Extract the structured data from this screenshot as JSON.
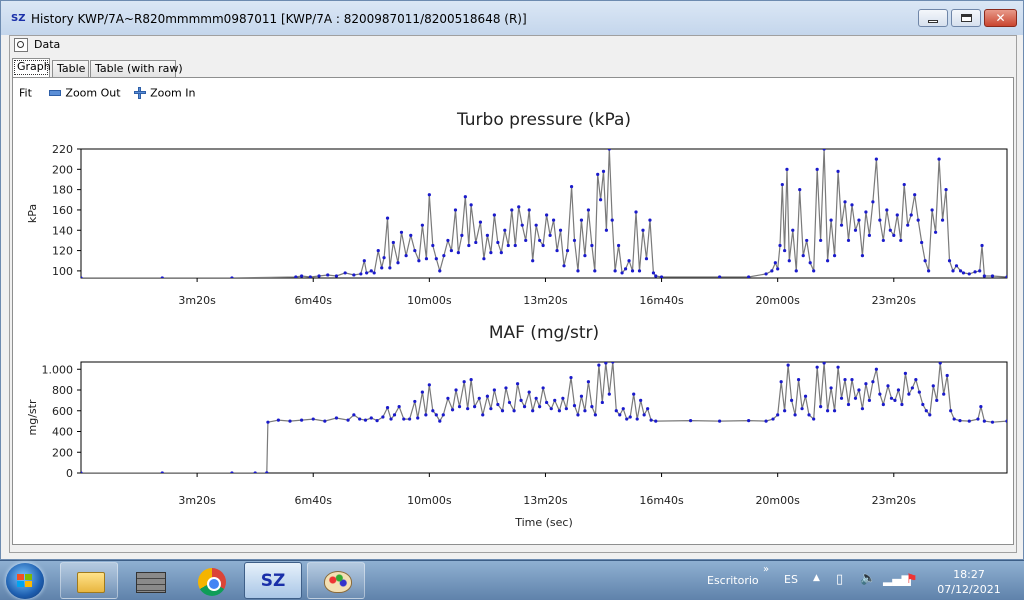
{
  "window": {
    "icon_text": "SZ",
    "title": "History KWP/7A~R820mmmmm0987011 [KWP/7A : 8200987011/8200518648 (R)]"
  },
  "toolbar": {
    "data_label": "Data"
  },
  "tabs": [
    {
      "label": "Graph",
      "active": true
    },
    {
      "label": "Table",
      "active": false
    },
    {
      "label": "Table (with raw)",
      "active": false
    }
  ],
  "zoom": {
    "fit_label": "Fit",
    "zoom_out_label": "Zoom Out",
    "zoom_in_label": "Zoom In"
  },
  "chart_data": [
    {
      "type": "line",
      "title": "Turbo pressure (kPa)",
      "ylabel": "kPa",
      "xlabel": "",
      "xlim": [
        0,
        1595
      ],
      "ylim": [
        93,
        220
      ],
      "yticks": [
        100,
        120,
        140,
        160,
        180,
        200,
        220
      ],
      "ytick_labels": [
        "100",
        "120",
        "140",
        "160",
        "180",
        "200",
        "220"
      ],
      "xticks": [
        200,
        400,
        600,
        800,
        1000,
        1200,
        1400
      ],
      "xtick_labels": [
        "3m20s",
        "6m40s",
        "10m00s",
        "13m20s",
        "16m40s",
        "20m00s",
        "23m20s"
      ],
      "series_color": "#1a1acb",
      "line_color": "#7a7a7a",
      "points": [
        [
          0,
          93
        ],
        [
          140,
          93
        ],
        [
          260,
          93
        ],
        [
          370,
          94
        ],
        [
          380,
          95
        ],
        [
          395,
          94
        ],
        [
          410,
          95
        ],
        [
          425,
          96
        ],
        [
          440,
          95
        ],
        [
          455,
          98
        ],
        [
          470,
          96
        ],
        [
          482,
          97
        ],
        [
          488,
          110
        ],
        [
          492,
          98
        ],
        [
          500,
          100
        ],
        [
          505,
          98
        ],
        [
          512,
          120
        ],
        [
          518,
          103
        ],
        [
          522,
          113
        ],
        [
          528,
          152
        ],
        [
          532,
          103
        ],
        [
          538,
          128
        ],
        [
          546,
          108
        ],
        [
          552,
          138
        ],
        [
          560,
          115
        ],
        [
          568,
          135
        ],
        [
          575,
          120
        ],
        [
          582,
          110
        ],
        [
          588,
          145
        ],
        [
          595,
          112
        ],
        [
          600,
          175
        ],
        [
          606,
          125
        ],
        [
          612,
          112
        ],
        [
          618,
          100
        ],
        [
          625,
          115
        ],
        [
          632,
          130
        ],
        [
          638,
          120
        ],
        [
          645,
          160
        ],
        [
          650,
          118
        ],
        [
          656,
          135
        ],
        [
          662,
          173
        ],
        [
          668,
          125
        ],
        [
          672,
          165
        ],
        [
          680,
          128
        ],
        [
          688,
          148
        ],
        [
          694,
          112
        ],
        [
          700,
          135
        ],
        [
          706,
          118
        ],
        [
          712,
          155
        ],
        [
          718,
          128
        ],
        [
          724,
          118
        ],
        [
          730,
          140
        ],
        [
          736,
          125
        ],
        [
          742,
          160
        ],
        [
          748,
          125
        ],
        [
          754,
          163
        ],
        [
          760,
          145
        ],
        [
          766,
          130
        ],
        [
          772,
          160
        ],
        [
          778,
          110
        ],
        [
          784,
          145
        ],
        [
          790,
          130
        ],
        [
          796,
          125
        ],
        [
          802,
          155
        ],
        [
          808,
          135
        ],
        [
          814,
          150
        ],
        [
          820,
          120
        ],
        [
          826,
          140
        ],
        [
          832,
          105
        ],
        [
          838,
          120
        ],
        [
          845,
          183
        ],
        [
          850,
          130
        ],
        [
          856,
          100
        ],
        [
          862,
          150
        ],
        [
          868,
          115
        ],
        [
          874,
          160
        ],
        [
          880,
          125
        ],
        [
          885,
          100
        ],
        [
          890,
          195
        ],
        [
          895,
          170
        ],
        [
          900,
          198
        ],
        [
          905,
          140
        ],
        [
          910,
          220
        ],
        [
          915,
          150
        ],
        [
          920,
          100
        ],
        [
          926,
          125
        ],
        [
          932,
          98
        ],
        [
          938,
          102
        ],
        [
          944,
          110
        ],
        [
          950,
          100
        ],
        [
          956,
          158
        ],
        [
          962,
          100
        ],
        [
          968,
          140
        ],
        [
          974,
          112
        ],
        [
          980,
          150
        ],
        [
          986,
          98
        ],
        [
          990,
          95
        ],
        [
          1000,
          94
        ],
        [
          1100,
          94
        ],
        [
          1150,
          94
        ],
        [
          1180,
          97
        ],
        [
          1190,
          100
        ],
        [
          1196,
          108
        ],
        [
          1200,
          102
        ],
        [
          1204,
          125
        ],
        [
          1208,
          185
        ],
        [
          1212,
          120
        ],
        [
          1216,
          200
        ],
        [
          1220,
          110
        ],
        [
          1226,
          140
        ],
        [
          1232,
          100
        ],
        [
          1238,
          180
        ],
        [
          1244,
          115
        ],
        [
          1250,
          130
        ],
        [
          1256,
          108
        ],
        [
          1262,
          100
        ],
        [
          1268,
          200
        ],
        [
          1274,
          130
        ],
        [
          1280,
          220
        ],
        [
          1286,
          110
        ],
        [
          1292,
          150
        ],
        [
          1298,
          115
        ],
        [
          1304,
          198
        ],
        [
          1310,
          145
        ],
        [
          1316,
          168
        ],
        [
          1322,
          130
        ],
        [
          1328,
          165
        ],
        [
          1334,
          140
        ],
        [
          1340,
          150
        ],
        [
          1346,
          115
        ],
        [
          1352,
          158
        ],
        [
          1358,
          135
        ],
        [
          1364,
          168
        ],
        [
          1370,
          210
        ],
        [
          1376,
          150
        ],
        [
          1382,
          130
        ],
        [
          1388,
          160
        ],
        [
          1394,
          140
        ],
        [
          1400,
          135
        ],
        [
          1406,
          155
        ],
        [
          1412,
          130
        ],
        [
          1418,
          185
        ],
        [
          1424,
          145
        ],
        [
          1430,
          155
        ],
        [
          1436,
          175
        ],
        [
          1442,
          150
        ],
        [
          1448,
          128
        ],
        [
          1454,
          110
        ],
        [
          1460,
          100
        ],
        [
          1466,
          160
        ],
        [
          1472,
          138
        ],
        [
          1478,
          210
        ],
        [
          1484,
          150
        ],
        [
          1490,
          180
        ],
        [
          1496,
          110
        ],
        [
          1502,
          100
        ],
        [
          1508,
          105
        ],
        [
          1515,
          100
        ],
        [
          1520,
          98
        ],
        [
          1530,
          97
        ],
        [
          1540,
          99
        ],
        [
          1548,
          100
        ],
        [
          1552,
          125
        ],
        [
          1556,
          95
        ],
        [
          1570,
          95
        ],
        [
          1595,
          94
        ]
      ]
    },
    {
      "type": "line",
      "title": "MAF (mg/str)",
      "ylabel": "mg/str",
      "xlabel": "Time (sec)",
      "xlim": [
        0,
        1595
      ],
      "ylim": [
        0,
        1070
      ],
      "yticks": [
        0,
        200,
        400,
        600,
        800,
        1000
      ],
      "ytick_labels": [
        "0",
        "200",
        "400",
        "600",
        "800",
        "1.000"
      ],
      "xticks": [
        200,
        400,
        600,
        800,
        1000,
        1200,
        1400
      ],
      "xtick_labels": [
        "3m20s",
        "6m40s",
        "10m00s",
        "13m20s",
        "16m40s",
        "20m00s",
        "23m20s"
      ],
      "series_color": "#1a1acb",
      "line_color": "#7a7a7a",
      "points": [
        [
          0,
          0
        ],
        [
          140,
          0
        ],
        [
          260,
          0
        ],
        [
          300,
          0
        ],
        [
          320,
          2
        ],
        [
          322,
          490
        ],
        [
          340,
          510
        ],
        [
          360,
          500
        ],
        [
          380,
          510
        ],
        [
          400,
          520
        ],
        [
          420,
          500
        ],
        [
          440,
          530
        ],
        [
          460,
          510
        ],
        [
          470,
          560
        ],
        [
          480,
          520
        ],
        [
          490,
          510
        ],
        [
          500,
          530
        ],
        [
          510,
          505
        ],
        [
          520,
          540
        ],
        [
          528,
          630
        ],
        [
          534,
          520
        ],
        [
          540,
          560
        ],
        [
          548,
          640
        ],
        [
          556,
          520
        ],
        [
          566,
          520
        ],
        [
          575,
          690
        ],
        [
          580,
          530
        ],
        [
          588,
          780
        ],
        [
          594,
          560
        ],
        [
          600,
          850
        ],
        [
          606,
          600
        ],
        [
          612,
          560
        ],
        [
          618,
          500
        ],
        [
          624,
          560
        ],
        [
          632,
          720
        ],
        [
          640,
          610
        ],
        [
          646,
          800
        ],
        [
          652,
          640
        ],
        [
          660,
          880
        ],
        [
          666,
          620
        ],
        [
          672,
          900
        ],
        [
          678,
          640
        ],
        [
          686,
          720
        ],
        [
          692,
          560
        ],
        [
          700,
          740
        ],
        [
          706,
          620
        ],
        [
          712,
          800
        ],
        [
          718,
          660
        ],
        [
          726,
          600
        ],
        [
          732,
          820
        ],
        [
          738,
          680
        ],
        [
          746,
          600
        ],
        [
          752,
          860
        ],
        [
          758,
          700
        ],
        [
          764,
          640
        ],
        [
          772,
          780
        ],
        [
          778,
          600
        ],
        [
          784,
          720
        ],
        [
          790,
          640
        ],
        [
          796,
          820
        ],
        [
          802,
          680
        ],
        [
          810,
          620
        ],
        [
          816,
          700
        ],
        [
          824,
          600
        ],
        [
          830,
          720
        ],
        [
          836,
          620
        ],
        [
          844,
          920
        ],
        [
          850,
          650
        ],
        [
          856,
          560
        ],
        [
          862,
          740
        ],
        [
          868,
          600
        ],
        [
          874,
          880
        ],
        [
          880,
          640
        ],
        [
          886,
          560
        ],
        [
          892,
          1040
        ],
        [
          898,
          680
        ],
        [
          904,
          1060
        ],
        [
          910,
          760
        ],
        [
          916,
          1070
        ],
        [
          922,
          600
        ],
        [
          928,
          560
        ],
        [
          934,
          620
        ],
        [
          940,
          520
        ],
        [
          946,
          540
        ],
        [
          952,
          760
        ],
        [
          958,
          520
        ],
        [
          964,
          700
        ],
        [
          970,
          560
        ],
        [
          976,
          620
        ],
        [
          982,
          510
        ],
        [
          990,
          500
        ],
        [
          1050,
          505
        ],
        [
          1100,
          500
        ],
        [
          1150,
          505
        ],
        [
          1180,
          500
        ],
        [
          1192,
          520
        ],
        [
          1200,
          560
        ],
        [
          1206,
          880
        ],
        [
          1212,
          600
        ],
        [
          1218,
          1040
        ],
        [
          1224,
          700
        ],
        [
          1230,
          560
        ],
        [
          1236,
          900
        ],
        [
          1242,
          620
        ],
        [
          1248,
          740
        ],
        [
          1254,
          560
        ],
        [
          1262,
          520
        ],
        [
          1268,
          1020
        ],
        [
          1274,
          640
        ],
        [
          1280,
          1060
        ],
        [
          1286,
          600
        ],
        [
          1292,
          820
        ],
        [
          1298,
          600
        ],
        [
          1304,
          1020
        ],
        [
          1310,
          720
        ],
        [
          1316,
          900
        ],
        [
          1322,
          660
        ],
        [
          1328,
          900
        ],
        [
          1334,
          720
        ],
        [
          1340,
          800
        ],
        [
          1346,
          620
        ],
        [
          1352,
          860
        ],
        [
          1358,
          700
        ],
        [
          1364,
          880
        ],
        [
          1370,
          1000
        ],
        [
          1376,
          760
        ],
        [
          1382,
          660
        ],
        [
          1390,
          840
        ],
        [
          1396,
          720
        ],
        [
          1402,
          700
        ],
        [
          1408,
          800
        ],
        [
          1414,
          660
        ],
        [
          1420,
          960
        ],
        [
          1426,
          760
        ],
        [
          1432,
          820
        ],
        [
          1438,
          900
        ],
        [
          1444,
          780
        ],
        [
          1450,
          660
        ],
        [
          1456,
          600
        ],
        [
          1462,
          560
        ],
        [
          1468,
          840
        ],
        [
          1474,
          700
        ],
        [
          1480,
          1060
        ],
        [
          1486,
          760
        ],
        [
          1492,
          940
        ],
        [
          1498,
          600
        ],
        [
          1504,
          520
        ],
        [
          1514,
          505
        ],
        [
          1530,
          500
        ],
        [
          1545,
          520
        ],
        [
          1550,
          640
        ],
        [
          1556,
          500
        ],
        [
          1570,
          490
        ],
        [
          1595,
          500
        ]
      ]
    }
  ],
  "taskbar": {
    "desktop_label": "Escritorio",
    "language": "ES",
    "time": "18:27",
    "date": "07/12/2021",
    "pinned": [
      "explorer-icon",
      "wall-icon",
      "chrome-icon",
      "sz-icon",
      "paint-icon"
    ],
    "sz_label": "SZ"
  }
}
